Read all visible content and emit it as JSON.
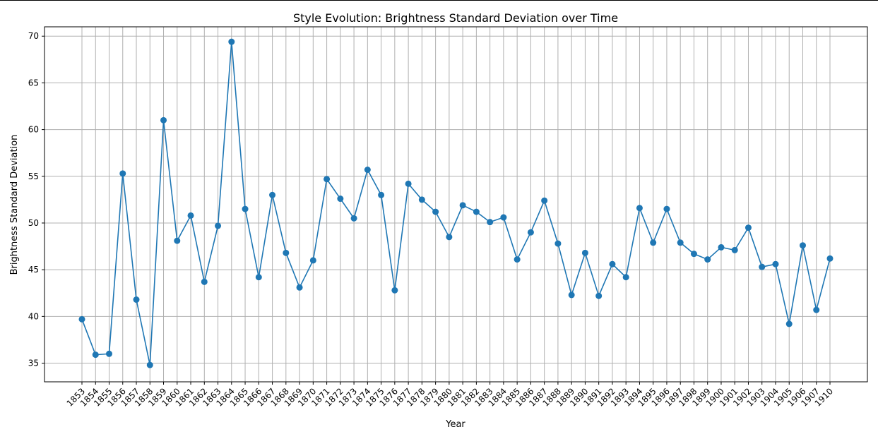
{
  "chart_data": {
    "type": "line",
    "title": "Style Evolution: Brightness Standard Deviation over Time",
    "xlabel": "Year",
    "ylabel": "Brightness Standard Deviation",
    "ylim": [
      33,
      71
    ],
    "yticks": [
      35,
      40,
      45,
      50,
      55,
      60,
      65,
      70
    ],
    "grid": true,
    "marker": "circle",
    "line_color": "#1f77b4",
    "x": [
      "1853",
      "1854",
      "1855",
      "1856",
      "1857",
      "1858",
      "1859",
      "1860",
      "1861",
      "1862",
      "1863",
      "1864",
      "1865",
      "1866",
      "1867",
      "1868",
      "1869",
      "1870",
      "1871",
      "1872",
      "1873",
      "1874",
      "1875",
      "1876",
      "1877",
      "1878",
      "1879",
      "1880",
      "1881",
      "1882",
      "1883",
      "1884",
      "1885",
      "1886",
      "1887",
      "1888",
      "1889",
      "1890",
      "1891",
      "1892",
      "1893",
      "1894",
      "1895",
      "1896",
      "1897",
      "1898",
      "1899",
      "1900",
      "1901",
      "1902",
      "1903",
      "1904",
      "1905",
      "1906",
      "1907",
      "1910"
    ],
    "values": [
      39.7,
      35.9,
      36.0,
      55.3,
      41.8,
      34.8,
      61.0,
      48.1,
      50.8,
      43.7,
      49.7,
      69.4,
      51.5,
      44.2,
      53.0,
      46.8,
      43.1,
      46.0,
      54.7,
      52.6,
      50.5,
      55.7,
      53.0,
      42.8,
      54.2,
      52.5,
      51.2,
      48.5,
      51.9,
      51.2,
      50.1,
      50.6,
      46.1,
      49.0,
      52.4,
      47.8,
      42.3,
      46.8,
      42.2,
      45.6,
      44.2,
      51.6,
      47.9,
      51.5,
      47.9,
      46.7,
      46.1,
      47.4,
      47.1,
      49.5,
      45.3,
      45.6,
      39.2,
      47.6,
      40.7,
      46.2
    ]
  }
}
